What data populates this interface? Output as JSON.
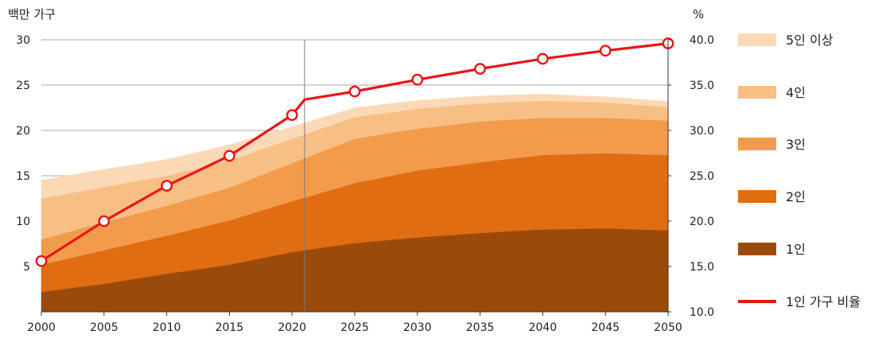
{
  "chart_data": {
    "type": "area",
    "left_unit": "백만 가구",
    "right_unit": "%",
    "x": [
      2000,
      2005,
      2010,
      2015,
      2020,
      2025,
      2030,
      2035,
      2040,
      2045,
      2050
    ],
    "x_ticks": [
      "2000",
      "2005",
      "2010",
      "2015",
      "2020",
      "2025",
      "2030",
      "2035",
      "2040",
      "2045",
      "2050"
    ],
    "y_left_ticks": [
      "5",
      "10",
      "15",
      "20",
      "25",
      "30"
    ],
    "y_right_ticks": [
      "10.0",
      "15.0",
      "20.0",
      "25.0",
      "30.0",
      "35.0",
      "40.0"
    ],
    "ylim_left": [
      0,
      30
    ],
    "ylim_right": [
      10,
      40
    ],
    "reference_year": 2021,
    "series": [
      {
        "name": "1인",
        "color": "#9a4a0b",
        "values": [
          2.2,
          3.1,
          4.2,
          5.2,
          6.6,
          7.6,
          8.2,
          8.7,
          9.1,
          9.2,
          9.0
        ]
      },
      {
        "name": "2인",
        "color": "#e06d12",
        "values": [
          3.0,
          3.7,
          4.2,
          4.9,
          5.6,
          6.6,
          7.4,
          7.8,
          8.2,
          8.3,
          8.3
        ]
      },
      {
        "name": "3인",
        "color": "#f29b4b",
        "values": [
          2.8,
          3.1,
          3.3,
          3.6,
          4.2,
          4.9,
          4.6,
          4.5,
          4.1,
          3.9,
          3.8
        ]
      },
      {
        "name": "4인",
        "color": "#f8bf85",
        "values": [
          4.5,
          3.9,
          3.3,
          3.0,
          2.7,
          2.4,
          2.2,
          2.0,
          1.9,
          1.7,
          1.5
        ]
      },
      {
        "name": "5인 이상",
        "color": "#fcd9b6",
        "values": [
          2.0,
          1.9,
          1.8,
          1.7,
          1.3,
          1.0,
          0.9,
          0.8,
          0.7,
          0.6,
          0.6
        ]
      }
    ],
    "ratio_series": {
      "name": "1인 가구 비율",
      "color": "#e8161a",
      "x": [
        2000,
        2005,
        2010,
        2015,
        2020,
        2025,
        2030,
        2035,
        2040,
        2045,
        2050
      ],
      "values": [
        15.6,
        20.0,
        23.9,
        27.2,
        31.7,
        34.3,
        35.6,
        36.8,
        37.9,
        38.8,
        39.6
      ],
      "extra_points": [
        {
          "x": 2021,
          "y": 33.4
        }
      ]
    },
    "legend_order": [
      "5인 이상",
      "4인",
      "3인",
      "2인",
      "1인",
      "1인 가구 비율"
    ],
    "legend_position": "right",
    "grid": "horizontal"
  }
}
